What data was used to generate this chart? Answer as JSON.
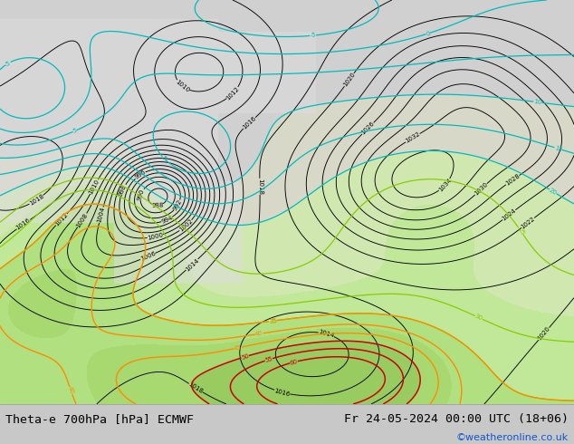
{
  "title_left": "Theta-e 700hPa [hPa] ECMWF",
  "title_right": "Fr 24-05-2024 00:00 UTC (18+06)",
  "watermark": "©weatheronline.co.uk",
  "bg_color": "#c8c8c8",
  "ocean_color": "#dcdcdc",
  "land_gray_color": "#c0c0c0",
  "land_green_color": "#b8e890",
  "bottom_bar_color": "#e8e8e8",
  "title_fontsize": 9.5,
  "watermark_color": "#1155cc",
  "contour_color_black": "#000000",
  "contour_color_orange": "#ff8c00",
  "contour_color_red": "#cc0000",
  "contour_color_cyan": "#00bbbb",
  "contour_color_blue": "#4477ff",
  "contour_color_yellow_green": "#88cc00",
  "contour_color_green": "#33aa00"
}
